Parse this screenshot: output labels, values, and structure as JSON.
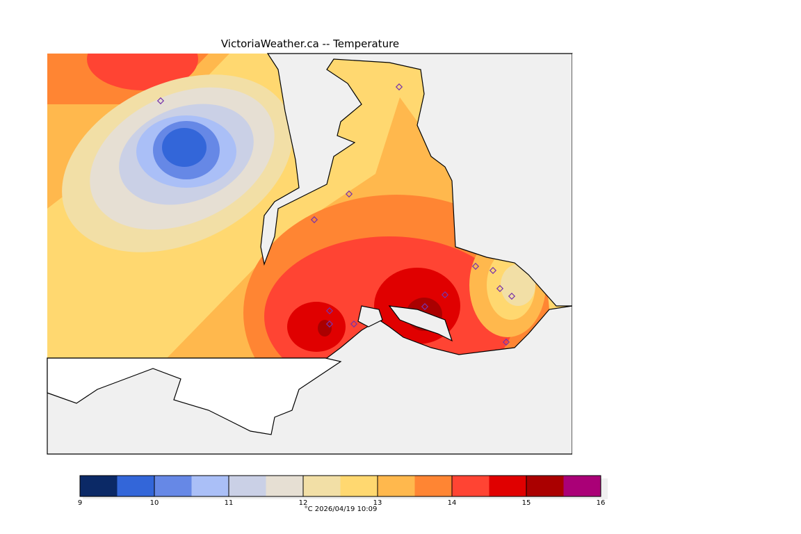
{
  "title": "VictoriaWeather.ca -- Temperature",
  "colorbar": {
    "units_and_time": "°C  2026/04/19 10:09",
    "tick_labels": [
      "9",
      "10",
      "11",
      "12",
      "13",
      "14",
      "15",
      "16"
    ]
  },
  "chart_data": {
    "type": "heatmap",
    "title": "VictoriaWeather.ca -- Temperature",
    "variable": "Temperature",
    "units": "°C",
    "timestamp": "2026/04/19 10:09",
    "range": [
      9,
      16
    ],
    "level_step": 0.5,
    "levels": [
      9,
      9.5,
      10,
      10.5,
      11,
      11.5,
      12,
      12.5,
      13,
      13.5,
      14,
      14.5,
      15,
      15.5,
      16
    ],
    "colors": [
      "#0b2966",
      "#3366d9",
      "#6688e6",
      "#aabff7",
      "#cad0e6",
      "#e6dfd3",
      "#f2dfa6",
      "#ffd870",
      "#ffb84d",
      "#ff8533",
      "#ff4433",
      "#e00000",
      "#aa0000",
      "#aa0077"
    ],
    "features": {
      "cold_minimum_approx": 9.5,
      "warm_maximum_approx": 15.5
    }
  }
}
